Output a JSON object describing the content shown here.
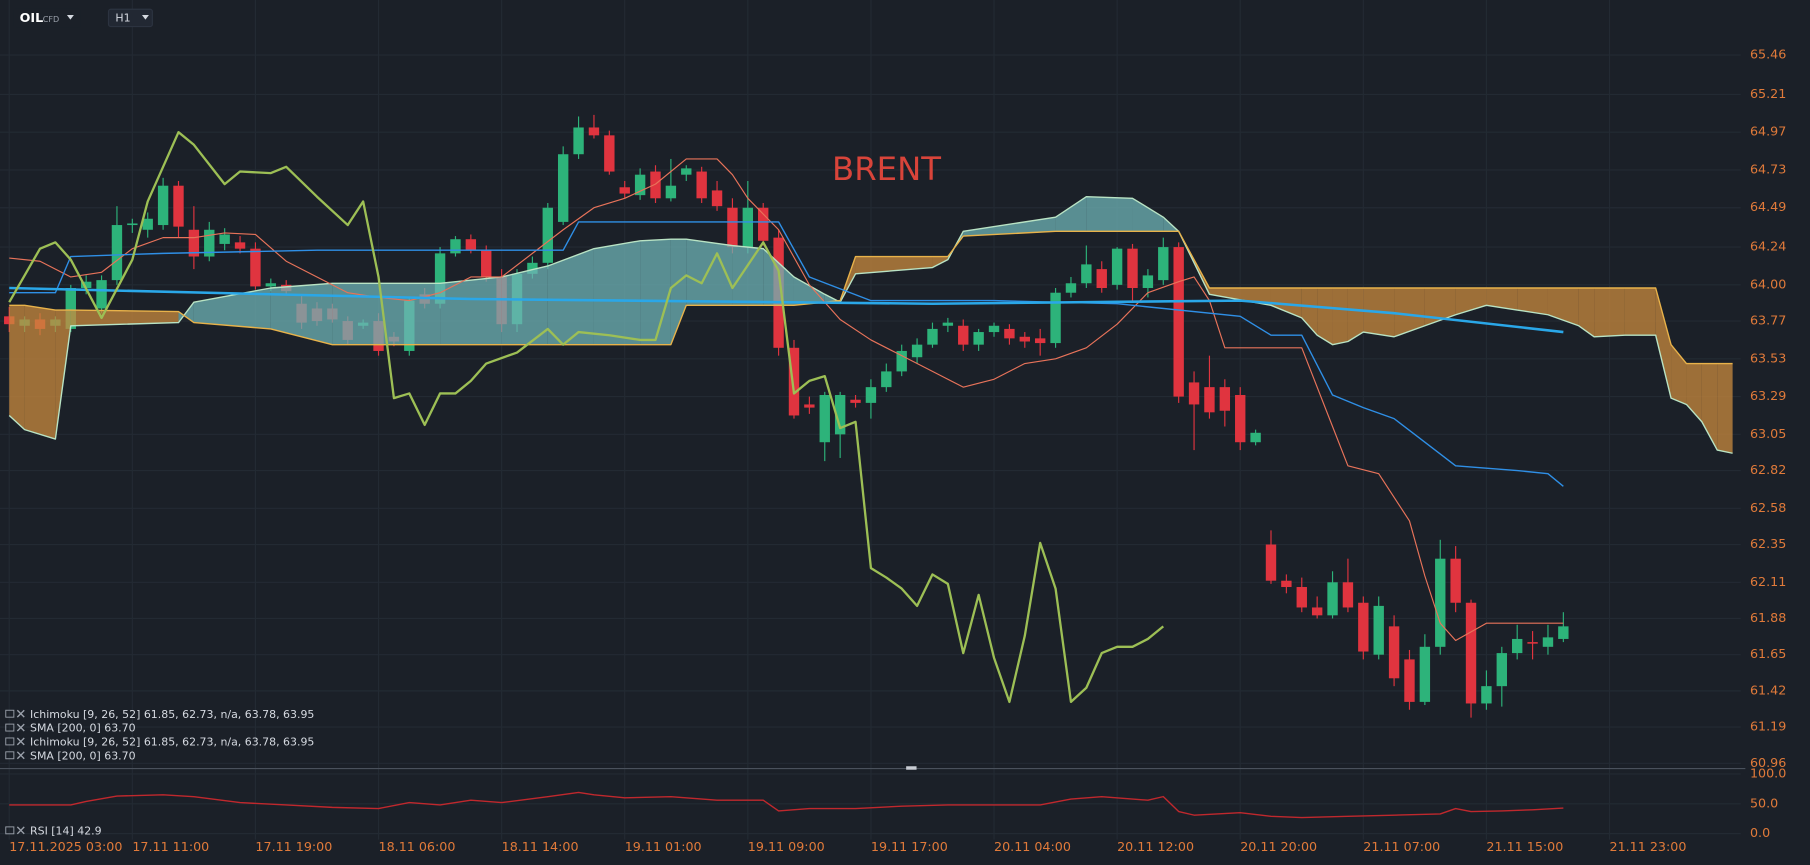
{
  "toolbar": {
    "symbol": "OIL",
    "symbol_tag": "CFD",
    "timeframe": "H1"
  },
  "chart_data": {
    "type": "candlestick",
    "annotation": "BRENT",
    "indicator_labels": [
      "Ichimoku  [9, 26, 52]  61.85,  62.73,  n/a,  63.78,  63.95",
      "SMA  [200, 0]  63.70",
      "Ichimoku  [9, 26, 52]  61.85,  62.73,  n/a,  63.78,  63.95",
      "SMA  [200, 0]  63.70"
    ],
    "grid": true,
    "up_color": "#2db37a",
    "down_color": "#e0343f",
    "ylim": [
      60.93,
      65.81
    ],
    "yticks": [
      65.46,
      65.21,
      64.97,
      64.73,
      64.49,
      64.24,
      {
        "value": 64,
        "label": "64.00"
      },
      63.77,
      63.53,
      63.29,
      63.05,
      62.82,
      62.58,
      62.35,
      62.11,
      61.88,
      61.65,
      61.42,
      61.19,
      60.96
    ],
    "categories": [
      "17.11.2025 03:00",
      null,
      null,
      null,
      null,
      null,
      null,
      null,
      "17.11 11:00",
      null,
      null,
      null,
      null,
      null,
      null,
      null,
      "17.11 19:00",
      null,
      null,
      null,
      null,
      null,
      null,
      null,
      "18.11 06:00",
      null,
      null,
      null,
      null,
      null,
      null,
      null,
      "18.11 14:00",
      null,
      null,
      null,
      null,
      null,
      null,
      null,
      "19.11 01:00",
      null,
      null,
      null,
      null,
      null,
      null,
      null,
      "19.11 09:00",
      null,
      null,
      null,
      null,
      null,
      null,
      null,
      "19.11 17:00",
      null,
      null,
      null,
      null,
      null,
      null,
      null,
      "20.11 04:00",
      null,
      null,
      null,
      null,
      null,
      null,
      null,
      "20.11 12:00",
      null,
      null,
      null,
      null,
      null,
      null,
      null,
      "20.11 20:00",
      null,
      null,
      null,
      null,
      null,
      null,
      null,
      "21.11 07:00",
      null,
      null,
      null,
      null,
      null,
      null,
      null,
      "21.11 15:00",
      null,
      null,
      null,
      null,
      null,
      null,
      null,
      "21.11 23:00",
      null,
      null,
      null,
      null,
      null,
      null,
      null,
      null
    ],
    "candles": {
      "open": [
        63.8,
        63.74,
        63.78,
        63.74,
        63.72,
        63.98,
        63.85,
        64.03,
        64.38,
        64.35,
        64.38,
        64.63,
        64.35,
        64.18,
        64.26,
        64.27,
        64.23,
        63.99,
        64.0,
        63.88,
        63.85,
        63.85,
        63.77,
        63.74,
        63.77,
        63.67,
        63.58,
        63.94,
        63.88,
        64.2,
        64.29,
        64.22,
        64.05,
        63.75,
        64.07,
        64.14,
        64.4,
        64.83,
        65.0,
        64.95,
        64.62,
        64.57,
        64.72,
        64.55,
        64.7,
        64.72,
        64.6,
        64.49,
        64.24,
        64.49,
        64.3,
        63.6,
        63.24,
        63.0,
        63.05,
        63.27,
        63.25,
        63.35,
        63.45,
        63.54,
        63.62,
        63.74,
        63.74,
        63.62,
        63.7,
        63.72,
        63.67,
        63.66,
        63.63,
        63.95,
        64.01,
        64.1,
        64.0,
        64.23,
        63.98,
        64.03,
        64.24,
        63.38,
        63.35,
        63.35,
        63.3,
        63.0,
        62.35,
        62.12,
        62.08,
        61.95,
        61.9,
        62.11,
        61.98,
        61.65,
        61.83,
        61.62,
        61.35,
        61.7,
        62.26,
        61.98,
        61.34,
        61.45,
        61.66,
        61.73,
        61.7,
        61.75,
        null,
        null,
        null,
        null,
        null,
        null,
        null,
        null,
        null,
        null,
        null
      ],
      "high": [
        63.86,
        63.8,
        63.82,
        63.8,
        64.0,
        64.06,
        64.06,
        64.5,
        64.42,
        64.46,
        64.68,
        64.66,
        64.5,
        64.4,
        64.36,
        64.31,
        64.27,
        64.04,
        64.03,
        63.93,
        63.89,
        63.88,
        63.8,
        63.78,
        63.82,
        63.7,
        63.92,
        63.98,
        64.24,
        64.31,
        64.32,
        64.25,
        64.1,
        64.1,
        64.18,
        64.52,
        64.88,
        65.07,
        65.08,
        64.98,
        64.66,
        64.74,
        64.76,
        64.8,
        64.76,
        64.75,
        64.66,
        64.55,
        64.66,
        64.52,
        64.35,
        63.65,
        63.29,
        63.32,
        63.32,
        63.3,
        63.4,
        63.5,
        63.62,
        63.66,
        63.76,
        63.79,
        63.78,
        63.72,
        63.76,
        63.75,
        63.7,
        63.72,
        63.98,
        64.05,
        64.25,
        64.15,
        64.24,
        64.26,
        64.1,
        64.3,
        64.27,
        63.45,
        63.55,
        63.4,
        63.35,
        63.08,
        62.44,
        62.16,
        62.14,
        62.02,
        62.18,
        62.26,
        62.02,
        62.02,
        61.9,
        61.68,
        61.78,
        62.38,
        62.34,
        62.0,
        61.55,
        61.7,
        61.84,
        61.8,
        61.84,
        61.92,
        null,
        null,
        null,
        null,
        null,
        null,
        null,
        null,
        null,
        null,
        null
      ],
      "low": [
        63.7,
        63.7,
        63.68,
        63.7,
        63.7,
        63.94,
        63.82,
        64.0,
        64.33,
        64.3,
        64.35,
        64.3,
        64.1,
        64.15,
        64.22,
        64.2,
        63.97,
        63.96,
        63.94,
        63.72,
        63.74,
        63.76,
        63.62,
        63.72,
        63.55,
        63.61,
        63.55,
        63.85,
        63.85,
        64.18,
        64.2,
        64.02,
        63.7,
        63.7,
        64.04,
        64.1,
        64.38,
        64.8,
        64.93,
        64.7,
        64.55,
        64.54,
        64.52,
        64.53,
        64.66,
        64.52,
        64.47,
        64.2,
        64.2,
        64.25,
        63.55,
        63.15,
        63.18,
        62.88,
        62.9,
        63.22,
        63.15,
        63.32,
        63.42,
        63.5,
        63.6,
        63.7,
        63.58,
        63.58,
        63.67,
        63.62,
        63.6,
        63.55,
        63.6,
        63.92,
        63.98,
        63.95,
        63.97,
        63.9,
        63.92,
        64.0,
        63.25,
        62.95,
        63.15,
        63.1,
        62.95,
        62.98,
        62.1,
        62.04,
        61.92,
        61.88,
        61.88,
        61.92,
        61.62,
        61.62,
        61.45,
        61.3,
        61.33,
        61.65,
        61.92,
        61.25,
        61.3,
        61.32,
        61.62,
        61.62,
        61.65,
        61.73,
        null,
        null,
        null,
        null,
        null,
        null,
        null,
        null,
        null,
        null,
        null
      ],
      "close": [
        63.75,
        63.78,
        63.72,
        63.78,
        63.98,
        64.02,
        64.03,
        64.38,
        64.39,
        64.42,
        64.63,
        64.37,
        64.18,
        64.35,
        64.32,
        64.23,
        63.99,
        64.01,
        63.96,
        63.76,
        63.77,
        63.78,
        63.65,
        63.76,
        63.58,
        63.64,
        63.9,
        63.88,
        64.2,
        64.29,
        64.22,
        64.05,
        63.75,
        64.07,
        64.14,
        64.49,
        64.83,
        65.0,
        64.95,
        64.72,
        64.58,
        64.7,
        64.55,
        64.63,
        64.74,
        64.55,
        64.5,
        64.24,
        64.49,
        64.28,
        63.6,
        63.17,
        63.22,
        63.3,
        63.3,
        63.25,
        63.35,
        63.45,
        63.58,
        63.62,
        63.72,
        63.76,
        63.62,
        63.7,
        63.74,
        63.66,
        63.64,
        63.63,
        63.95,
        64.01,
        64.13,
        63.98,
        64.23,
        63.98,
        64.06,
        64.24,
        63.29,
        63.24,
        63.19,
        63.2,
        63.0,
        63.06,
        62.12,
        62.08,
        61.95,
        61.9,
        62.11,
        61.95,
        61.67,
        61.96,
        61.5,
        61.35,
        61.7,
        62.26,
        61.98,
        61.34,
        61.45,
        61.66,
        61.75,
        61.72,
        61.76,
        61.83,
        null,
        null,
        null,
        null,
        null,
        null,
        null,
        null,
        null,
        null,
        null
      ]
    },
    "cloud": {
      "fill_up": "#6fb3b6",
      "fill_down": "#c98a3e",
      "color_a": "#b9e3c4",
      "color_b": "#e8b24a",
      "x": [
        0,
        1,
        3,
        4,
        11,
        12,
        17,
        21,
        28,
        32,
        35,
        38,
        41,
        43,
        44,
        47,
        49,
        51,
        53,
        54,
        55,
        60,
        61,
        62,
        68,
        70,
        73,
        75,
        76,
        78,
        82,
        84,
        85,
        86,
        87,
        88,
        90,
        92,
        94,
        96,
        98,
        100,
        102,
        103,
        105,
        107,
        108,
        109,
        110,
        111,
        112
      ],
      "senkou_a": [
        63.17,
        63.08,
        63.02,
        63.74,
        63.76,
        63.89,
        63.98,
        64.01,
        64.01,
        64.05,
        64.12,
        64.23,
        64.28,
        64.29,
        64.29,
        64.25,
        64.23,
        64.05,
        63.94,
        63.89,
        64.07,
        64.11,
        64.16,
        64.34,
        64.43,
        64.56,
        64.55,
        64.43,
        64.34,
        63.94,
        63.87,
        63.79,
        63.68,
        63.62,
        63.64,
        63.7,
        63.67,
        63.74,
        63.81,
        63.87,
        63.84,
        63.81,
        63.74,
        63.67,
        63.68,
        63.68,
        63.28,
        63.24,
        63.13,
        62.95,
        62.93
      ],
      "senkou_b": [
        63.87,
        63.87,
        63.84,
        63.84,
        63.83,
        63.76,
        63.72,
        63.62,
        63.62,
        63.62,
        63.62,
        63.62,
        63.62,
        63.62,
        63.87,
        63.87,
        63.87,
        63.87,
        63.89,
        63.9,
        64.18,
        64.18,
        64.18,
        64.31,
        64.34,
        64.34,
        64.34,
        64.34,
        64.34,
        63.98,
        63.98,
        63.98,
        63.98,
        63.98,
        63.98,
        63.98,
        63.98,
        63.98,
        63.98,
        63.98,
        63.98,
        63.98,
        63.98,
        63.98,
        63.98,
        63.98,
        63.62,
        63.5,
        63.5,
        63.5,
        63.5
      ]
    },
    "lines": [
      {
        "color": "#e8735a",
        "width": 1,
        "x": [
          0,
          2,
          4,
          6,
          8,
          10,
          12,
          14,
          16,
          18,
          20,
          22,
          24,
          26,
          28,
          30,
          32,
          34,
          36,
          38,
          40,
          42,
          44,
          46,
          47,
          48,
          50,
          52,
          54,
          56,
          58,
          60,
          62,
          64,
          66,
          68,
          70,
          72,
          74,
          76,
          77,
          78,
          79,
          82,
          84,
          86,
          87,
          89,
          91,
          92,
          93,
          94,
          96,
          101
        ],
        "values": [
          64.17,
          64.15,
          64.05,
          64.08,
          64.23,
          64.3,
          64.3,
          64.33,
          64.32,
          64.15,
          64.05,
          63.95,
          63.92,
          63.9,
          63.95,
          64.05,
          64.05,
          64.2,
          64.35,
          64.49,
          64.55,
          64.64,
          64.8,
          64.8,
          64.7,
          64.55,
          64.35,
          64.0,
          63.78,
          63.65,
          63.55,
          63.45,
          63.35,
          63.4,
          63.5,
          63.53,
          63.6,
          63.75,
          63.95,
          64.02,
          64.05,
          63.9,
          63.6,
          63.6,
          63.6,
          63.1,
          62.85,
          62.8,
          62.5,
          62.15,
          61.85,
          61.74,
          61.85,
          61.85
        ]
      },
      {
        "color": "#2f8fe6",
        "width": 1.2,
        "x": [
          0,
          3,
          4,
          10,
          20,
          30,
          36,
          37,
          50,
          52,
          56,
          64,
          72,
          80,
          82,
          84,
          86,
          88,
          90,
          92,
          94,
          98,
          100,
          101
        ],
        "values": [
          63.95,
          63.95,
          64.18,
          64.2,
          64.22,
          64.22,
          64.22,
          64.4,
          64.4,
          64.05,
          63.9,
          63.9,
          63.88,
          63.8,
          63.68,
          63.68,
          63.3,
          63.22,
          63.15,
          63.0,
          62.85,
          62.82,
          62.8,
          62.72
        ]
      },
      {
        "color": "#2aa7e8",
        "width": 2.2,
        "x": [
          0,
          30,
          60,
          80,
          90,
          101
        ],
        "values": [
          63.98,
          63.91,
          63.88,
          63.9,
          63.82,
          63.7
        ]
      },
      {
        "color": "#9dbf55",
        "width": 2,
        "x": [
          0,
          2,
          3,
          4,
          6,
          8,
          9,
          11,
          12,
          14,
          15,
          17,
          18,
          20,
          22,
          23,
          24,
          25,
          26,
          27,
          28,
          29,
          30,
          31,
          33,
          35,
          36,
          37,
          39,
          41,
          42,
          43,
          44,
          45,
          46,
          47,
          49,
          50,
          51,
          52,
          53,
          54,
          55,
          56,
          57,
          58,
          59,
          60,
          61,
          62,
          63,
          64,
          65,
          66,
          67,
          68,
          69,
          70,
          71,
          72,
          73,
          74,
          75
        ],
        "values": [
          63.89,
          64.23,
          64.27,
          64.16,
          63.79,
          64.16,
          64.53,
          64.97,
          64.89,
          64.64,
          64.72,
          64.71,
          64.75,
          64.56,
          64.38,
          64.53,
          64.05,
          63.28,
          63.31,
          63.11,
          63.31,
          63.31,
          63.39,
          63.5,
          63.57,
          63.72,
          63.62,
          63.7,
          63.68,
          63.65,
          63.65,
          63.98,
          64.06,
          64.01,
          64.2,
          63.98,
          64.27,
          64.09,
          63.31,
          63.39,
          63.42,
          63.09,
          63.13,
          62.2,
          62.14,
          62.07,
          61.96,
          62.16,
          62.1,
          61.66,
          62.03,
          61.63,
          61.35,
          61.77,
          62.36,
          62.07,
          61.35,
          61.44,
          61.66,
          61.7,
          61.7,
          61.75,
          61.83
        ]
      }
    ],
    "rsi": {
      "label": "RSI  [14]  42.9",
      "color": "#c0282d",
      "ylim": [
        -10,
        110
      ],
      "yticks": [
        {
          "value": 100,
          "label": "100.0"
        },
        {
          "value": 50,
          "label": "50.0"
        },
        {
          "value": 0,
          "label": "0.0"
        }
      ],
      "x": [
        0,
        4,
        5,
        7,
        10,
        12,
        15,
        18,
        21,
        24,
        26,
        28,
        30,
        32,
        35,
        37,
        38,
        40,
        43,
        46,
        49,
        50,
        52,
        55,
        58,
        61,
        64,
        67,
        69,
        71,
        74,
        75,
        76,
        77,
        80,
        82,
        84,
        87,
        90,
        93,
        94,
        95,
        97,
        99,
        101
      ],
      "values": [
        48,
        48,
        54,
        63,
        65,
        62,
        52,
        48,
        44,
        42,
        52,
        48,
        56,
        52,
        62,
        69,
        65,
        60,
        62,
        56,
        56,
        38,
        42,
        42,
        46,
        48,
        48,
        48,
        58,
        62,
        56,
        62,
        37,
        31,
        35,
        29,
        27,
        29,
        31,
        33,
        42,
        37,
        38,
        40,
        42.9
      ]
    }
  }
}
